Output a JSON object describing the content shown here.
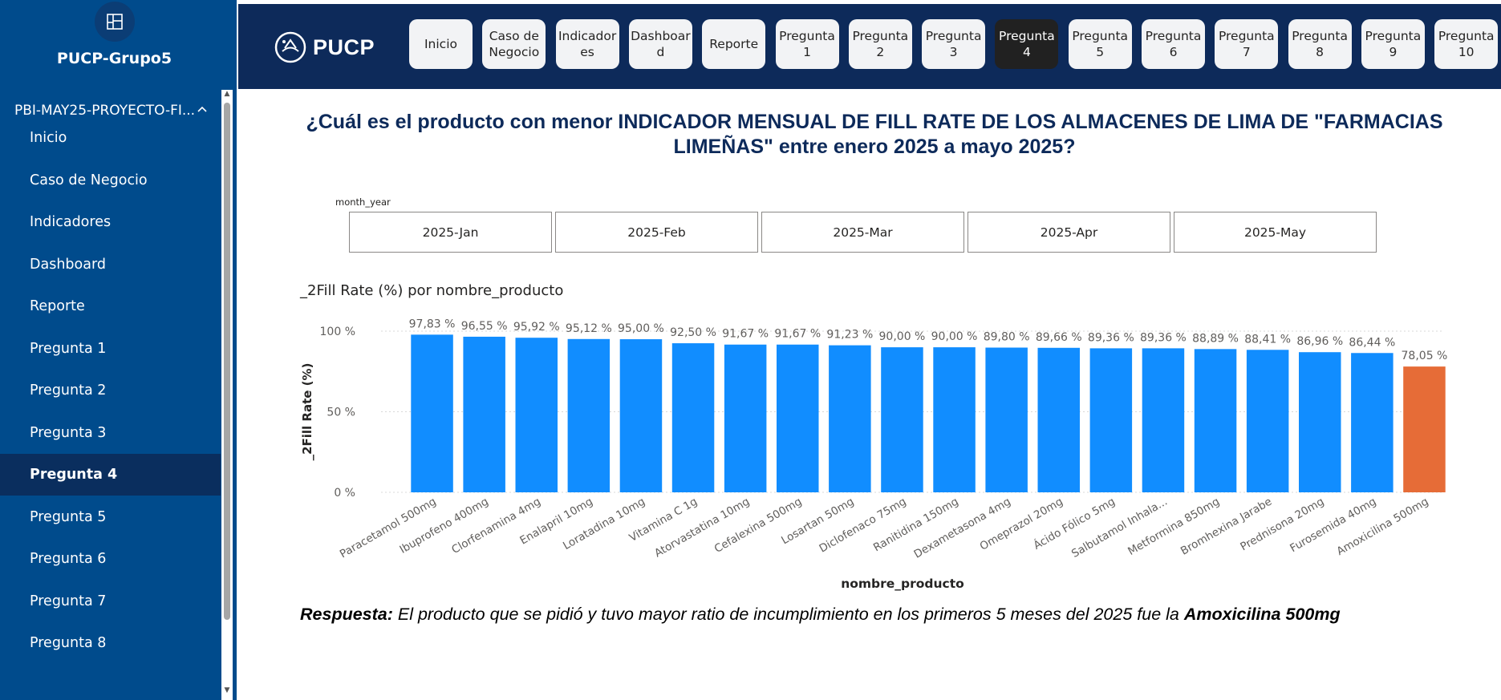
{
  "sidebar": {
    "workspace_name": "PUCP-Grupo5",
    "section_title": "PBI-MAY25-PROYECTO-FI...",
    "items": [
      {
        "label": "Inicio",
        "active": false
      },
      {
        "label": "Caso de Negocio",
        "active": false
      },
      {
        "label": "Indicadores",
        "active": false
      },
      {
        "label": "Dashboard",
        "active": false
      },
      {
        "label": "Reporte",
        "active": false
      },
      {
        "label": "Pregunta 1",
        "active": false
      },
      {
        "label": "Pregunta 2",
        "active": false
      },
      {
        "label": "Pregunta 3",
        "active": false
      },
      {
        "label": "Pregunta 4",
        "active": true
      },
      {
        "label": "Pregunta 5",
        "active": false
      },
      {
        "label": "Pregunta 6",
        "active": false
      },
      {
        "label": "Pregunta 7",
        "active": false
      },
      {
        "label": "Pregunta 8",
        "active": false
      }
    ]
  },
  "topnav": {
    "logo_text": "PUCP",
    "buttons": [
      {
        "label": "Inicio",
        "active": false
      },
      {
        "label": "Caso de\nNegocio",
        "active": false
      },
      {
        "label": "Indicador\nes",
        "active": false
      },
      {
        "label": "Dashboar\nd",
        "active": false
      },
      {
        "label": "Reporte",
        "active": false
      },
      {
        "label": "Pregunta\n1",
        "active": false
      },
      {
        "label": "Pregunta\n2",
        "active": false
      },
      {
        "label": "Pregunta\n3",
        "active": false
      },
      {
        "label": "Pregunta\n4",
        "active": true
      },
      {
        "label": "Pregunta\n5",
        "active": false
      },
      {
        "label": "Pregunta\n6",
        "active": false
      },
      {
        "label": "Pregunta\n7",
        "active": false
      },
      {
        "label": "Pregunta\n8",
        "active": false
      },
      {
        "label": "Pregunta\n9",
        "active": false
      },
      {
        "label": "Pregunta\n10",
        "active": false
      }
    ]
  },
  "question": "¿Cuál es el producto con menor INDICADOR MENSUAL DE FILL RATE DE LOS ALMACENES DE LIMA DE \"FARMACIAS LIMEÑAS\" entre enero 2025 a mayo 2025?",
  "slicer": {
    "label": "month_year",
    "options": [
      "2025-Jan",
      "2025-Feb",
      "2025-Mar",
      "2025-Apr",
      "2025-May"
    ]
  },
  "chart_data": {
    "type": "bar",
    "title": "_2Fill Rate (%) por nombre_producto",
    "xlabel": "nombre_producto",
    "ylabel": "_2Fill Rate (%)",
    "ylim": [
      0,
      100
    ],
    "yticks": [
      "100 %",
      "50 %",
      "0 %"
    ],
    "grid": true,
    "categories": [
      "Paracetamol 500mg",
      "Ibuprofeno 400mg",
      "Clorfenamina 4mg",
      "Enalapril 10mg",
      "Loratadina 10mg",
      "Vitamina C 1g",
      "Atorvastatina 10mg",
      "Cefalexina 500mg",
      "Losartan 50mg",
      "Diclofenaco 75mg",
      "Ranitidina 150mg",
      "Dexametasona 4mg",
      "Omeprazol 20mg",
      "Ácido Fólico 5mg",
      "Salbutamol Inhala...",
      "Metformina 850mg",
      "Bromhexina Jarabe",
      "Prednisona 20mg",
      "Furosemida 40mg",
      "Amoxicilina 500mg"
    ],
    "values": [
      97.83,
      96.55,
      95.92,
      95.12,
      95.0,
      92.5,
      91.67,
      91.67,
      91.23,
      90.0,
      90.0,
      89.8,
      89.66,
      89.36,
      89.36,
      88.89,
      88.41,
      86.96,
      86.44,
      78.05
    ],
    "data_labels": [
      "97,83 %",
      "96,55 %",
      "95,92 %",
      "95,12 %",
      "95,00 %",
      "92,50 %",
      "91,67 %",
      "91,67 %",
      "91,23 %",
      "90,00 %",
      "90,00 %",
      "89,80 %",
      "89,66 %",
      "89,36 %",
      "89,36 %",
      "88,89 %",
      "88,41 %",
      "86,96 %",
      "86,44 %",
      "78,05 %"
    ],
    "colors": {
      "default": "#118dff",
      "highlight": "#e66c37"
    },
    "highlight_category": "Amoxicilina 500mg"
  },
  "answer": {
    "prefix": "Respuesta:",
    "text": " El producto que se pidió y tuvo mayor ratio de incumplimiento en los primeros 5 meses del  2025 fue la ",
    "highlight": "Amoxicilina 500mg"
  }
}
